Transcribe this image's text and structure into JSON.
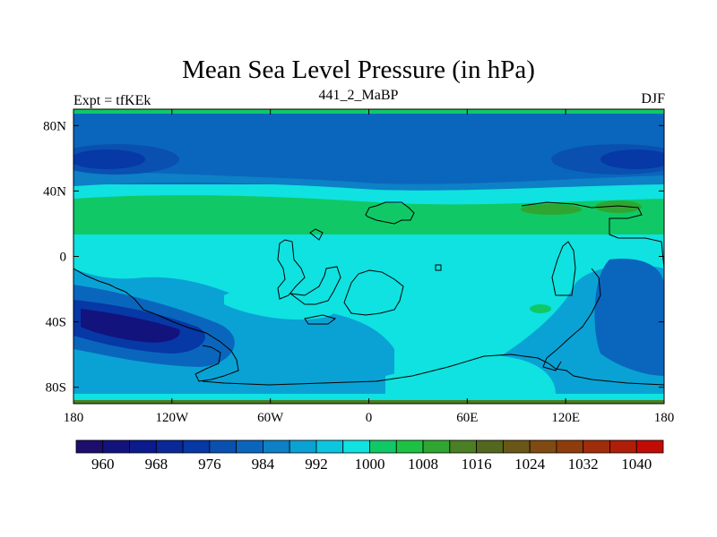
{
  "title": "Mean Sea Level Pressure (in hPa)",
  "left_string": "Expt = tfKEk",
  "center_string": "441_2_MaBP",
  "right_string": "DJF",
  "map": {
    "projection": "cylindrical-equidistant",
    "lon_range": [
      -180,
      180
    ],
    "lat_range": [
      -90,
      90
    ],
    "lon_ticks": [
      {
        "value": -180,
        "label": "180"
      },
      {
        "value": -120,
        "label": "120W"
      },
      {
        "value": -60,
        "label": "60W"
      },
      {
        "value": 0,
        "label": "0"
      },
      {
        "value": 60,
        "label": "60E"
      },
      {
        "value": 120,
        "label": "120E"
      },
      {
        "value": 180,
        "label": "180"
      }
    ],
    "lat_ticks": [
      {
        "value": 80,
        "label": "80N"
      },
      {
        "value": 40,
        "label": "40N"
      },
      {
        "value": 0,
        "label": "0"
      },
      {
        "value": -40,
        "label": "40S"
      },
      {
        "value": -80,
        "label": "80S"
      }
    ],
    "land_outline_color": "#000000"
  },
  "colorbar": {
    "levels": [
      956,
      960,
      964,
      968,
      972,
      976,
      980,
      984,
      988,
      992,
      996,
      1000,
      1004,
      1008,
      1012,
      1016,
      1020,
      1024,
      1028,
      1032,
      1036,
      1040,
      1044
    ],
    "labeled_levels": [
      "960",
      "968",
      "976",
      "984",
      "992",
      "1000",
      "1008",
      "1016",
      "1024",
      "1032",
      "1040"
    ],
    "colors": [
      "#1d0e6e",
      "#13137e",
      "#0b1a8c",
      "#0a2899",
      "#0638a6",
      "#0a50b0",
      "#0a66bd",
      "#0d80c6",
      "#0aa2d5",
      "#0cc6df",
      "#0fe2e0",
      "#10c966",
      "#1dc242",
      "#2fa631",
      "#4b7f24",
      "#53671e",
      "#6a5717",
      "#7f4b12",
      "#8f3c0c",
      "#a02d0a",
      "#b01d08",
      "#c10c06"
    ]
  }
}
